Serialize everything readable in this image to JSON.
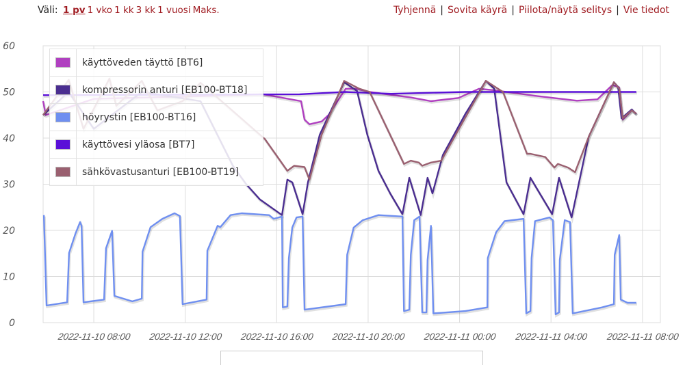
{
  "toolbar": {
    "range_label": "Väli:",
    "ranges": [
      "1 pv",
      "1 vko",
      "1 kk",
      "3 kk",
      "1 vuosi",
      "Maks."
    ],
    "active_range": "1 pv",
    "actions": [
      "Tyhjennä",
      "Sovita käyrä",
      "Piilota/näytä selitys",
      "Vie tiedot"
    ]
  },
  "chart_data": {
    "type": "line",
    "title": "",
    "xlabel": "",
    "ylabel": "",
    "ylim": [
      0,
      60
    ],
    "xlim": [
      "2022-11-10 05:47",
      "2022-11-11 08:47"
    ],
    "y_ticks": [
      "0",
      "10",
      "20",
      "30",
      "40",
      "50",
      "60"
    ],
    "x_ticks": [
      "2022-11-10 08:00",
      "2022-11-10 12:00",
      "2022-11-10 16:00",
      "2022-11-10 20:00",
      "2022-11-11 00:00",
      "2022-11-11 04:00",
      "2022-11-11 08:00"
    ],
    "grid": true,
    "legend_position": "top-left",
    "series": [
      {
        "name": "käyttöveden täyttö [BT6]",
        "color": "#b040c0",
        "points": [
          [
            "2022-11-10 05:47",
            48
          ],
          [
            "2022-11-10 05:54",
            45
          ],
          [
            "2022-11-10 08:00",
            48.5
          ],
          [
            "2022-11-10 12:00",
            49
          ],
          [
            "2022-11-10 15:25",
            49.5
          ],
          [
            "2022-11-10 17:04",
            48
          ],
          [
            "2022-11-10 17:13",
            44
          ],
          [
            "2022-11-10 17:26",
            43
          ],
          [
            "2022-11-10 17:58",
            43.6
          ],
          [
            "2022-11-10 18:16",
            45
          ],
          [
            "2022-11-10 19:01",
            50.7
          ],
          [
            "2022-11-10 19:28",
            50.7
          ],
          [
            "2022-11-10 20:04",
            50
          ],
          [
            "2022-11-10 21:52",
            48.8
          ],
          [
            "2022-11-10 22:45",
            48
          ],
          [
            "2022-11-10 23:57",
            48.7
          ],
          [
            "2022-11-11 00:51",
            50.7
          ],
          [
            "2022-11-11 01:27",
            50.4
          ],
          [
            "2022-11-11 03:15",
            49.2
          ],
          [
            "2022-11-11 05:08",
            48.1
          ],
          [
            "2022-11-11 06:02",
            48.4
          ],
          [
            "2022-11-11 06:41",
            51.5
          ],
          [
            "2022-11-11 06:59",
            51
          ],
          [
            "2022-11-11 07:08",
            44
          ],
          [
            "2022-11-11 07:32",
            46
          ],
          [
            "2022-11-11 07:44",
            45.3
          ]
        ]
      },
      {
        "name": "kompressorin anturi [EB100-BT18]",
        "color": "#4a2d90",
        "points": [
          [
            "2022-11-10 05:47",
            45
          ],
          [
            "2022-11-10 06:54",
            50
          ],
          [
            "2022-11-10 08:00",
            42
          ],
          [
            "2022-11-10 10:06",
            50
          ],
          [
            "2022-11-10 12:40",
            48
          ],
          [
            "2022-11-10 14:05",
            34
          ],
          [
            "2022-11-10 14:40",
            30
          ],
          [
            "2022-11-10 15:16",
            26.7
          ],
          [
            "2022-11-10 16:14",
            23.3
          ],
          [
            "2022-11-10 16:28",
            31
          ],
          [
            "2022-11-10 16:41",
            30.4
          ],
          [
            "2022-11-10 17:08",
            23.5
          ],
          [
            "2022-11-10 17:22",
            30.4
          ],
          [
            "2022-11-10 17:53",
            40.7
          ],
          [
            "2022-11-10 18:57",
            52.1
          ],
          [
            "2022-11-10 19:31",
            50.2
          ],
          [
            "2022-11-10 19:58",
            40.7
          ],
          [
            "2022-11-10 20:27",
            32.9
          ],
          [
            "2022-11-10 20:58",
            28
          ],
          [
            "2022-11-10 21:30",
            23.5
          ],
          [
            "2022-11-10 21:48",
            31.4
          ],
          [
            "2022-11-10 22:18",
            23.3
          ],
          [
            "2022-11-10 22:36",
            31.4
          ],
          [
            "2022-11-10 22:49",
            28
          ],
          [
            "2022-11-10 23:16",
            36.3
          ],
          [
            "2022-11-11 00:15",
            45.2
          ],
          [
            "2022-11-11 01:09",
            52.4
          ],
          [
            "2022-11-11 01:31",
            50.7
          ],
          [
            "2022-11-11 02:03",
            30.4
          ],
          [
            "2022-11-11 02:48",
            23.5
          ],
          [
            "2022-11-11 03:06",
            31.4
          ],
          [
            "2022-11-11 04:03",
            23.5
          ],
          [
            "2022-11-11 04:21",
            31.4
          ],
          [
            "2022-11-11 04:54",
            22.8
          ],
          [
            "2022-11-11 05:39",
            40.3
          ],
          [
            "2022-11-11 06:45",
            52.1
          ],
          [
            "2022-11-11 06:56",
            51.1
          ],
          [
            "2022-11-11 07:05",
            44.3
          ],
          [
            "2022-11-11 07:32",
            46.2
          ],
          [
            "2022-11-11 07:44",
            45.2
          ]
        ]
      },
      {
        "name": "höyrystin [EB100-BT16]",
        "color": "#6f8ff0",
        "points": [
          [
            "2022-11-10 05:49",
            23.3
          ],
          [
            "2022-11-10 05:56",
            3.7
          ],
          [
            "2022-11-10 06:50",
            4.4
          ],
          [
            "2022-11-10 06:55",
            15.1
          ],
          [
            "2022-11-10 07:12",
            19.3
          ],
          [
            "2022-11-10 07:24",
            21.8
          ],
          [
            "2022-11-10 07:28",
            21
          ],
          [
            "2022-11-10 07:33",
            4.4
          ],
          [
            "2022-11-10 08:27",
            5
          ],
          [
            "2022-11-10 08:32",
            16.1
          ],
          [
            "2022-11-10 08:48",
            19.9
          ],
          [
            "2022-11-10 08:54",
            5.8
          ],
          [
            "2022-11-10 09:41",
            4.6
          ],
          [
            "2022-11-10 10:06",
            5.2
          ],
          [
            "2022-11-10 10:08",
            15.4
          ],
          [
            "2022-11-10 10:29",
            20.7
          ],
          [
            "2022-11-10 11:00",
            22.5
          ],
          [
            "2022-11-10 11:32",
            23.7
          ],
          [
            "2022-11-10 11:46",
            23.1
          ],
          [
            "2022-11-10 11:53",
            4
          ],
          [
            "2022-11-10 12:56",
            5
          ],
          [
            "2022-11-10 12:58",
            15.6
          ],
          [
            "2022-11-10 13:25",
            21
          ],
          [
            "2022-11-10 13:32",
            20.7
          ],
          [
            "2022-11-10 13:59",
            23.3
          ],
          [
            "2022-11-10 14:28",
            23.7
          ],
          [
            "2022-11-10 15:40",
            23.3
          ],
          [
            "2022-11-10 15:52",
            22.5
          ],
          [
            "2022-11-10 16:14",
            23
          ],
          [
            "2022-11-10 16:16",
            3.3
          ],
          [
            "2022-11-10 16:28",
            3.5
          ],
          [
            "2022-11-10 16:32",
            14
          ],
          [
            "2022-11-10 16:41",
            20.6
          ],
          [
            "2022-11-10 16:52",
            22.8
          ],
          [
            "2022-11-10 17:08",
            23
          ],
          [
            "2022-11-10 17:13",
            2.8
          ],
          [
            "2022-11-10 19:01",
            4
          ],
          [
            "2022-11-10 19:05",
            14.7
          ],
          [
            "2022-11-10 19:22",
            20.6
          ],
          [
            "2022-11-10 19:46",
            22.2
          ],
          [
            "2022-11-10 20:27",
            23.3
          ],
          [
            "2022-11-10 21:30",
            23
          ],
          [
            "2022-11-10 21:34",
            2.5
          ],
          [
            "2022-11-10 21:48",
            2.8
          ],
          [
            "2022-11-10 21:52",
            14.7
          ],
          [
            "2022-11-10 22:01",
            22.2
          ],
          [
            "2022-11-10 22:15",
            23
          ],
          [
            "2022-11-10 22:22",
            2.2
          ],
          [
            "2022-11-10 22:33",
            2.2
          ],
          [
            "2022-11-10 22:36",
            13.6
          ],
          [
            "2022-11-10 22:45",
            21
          ],
          [
            "2022-11-10 22:51",
            2
          ],
          [
            "2022-11-11 00:15",
            2.5
          ],
          [
            "2022-11-11 01:13",
            3.3
          ],
          [
            "2022-11-11 01:14",
            14
          ],
          [
            "2022-11-11 01:36",
            19.6
          ],
          [
            "2022-11-11 01:58",
            22
          ],
          [
            "2022-11-11 02:48",
            22.5
          ],
          [
            "2022-11-11 02:55",
            2
          ],
          [
            "2022-11-11 03:06",
            2.5
          ],
          [
            "2022-11-11 03:09",
            14
          ],
          [
            "2022-11-11 03:18",
            22
          ],
          [
            "2022-11-11 03:56",
            22.8
          ],
          [
            "2022-11-11 04:05",
            22.2
          ],
          [
            "2022-11-11 04:12",
            1.8
          ],
          [
            "2022-11-11 04:21",
            2.2
          ],
          [
            "2022-11-11 04:23",
            13.6
          ],
          [
            "2022-11-11 04:36",
            22.2
          ],
          [
            "2022-11-11 04:50",
            21.8
          ],
          [
            "2022-11-11 04:57",
            2
          ],
          [
            "2022-11-11 06:14",
            3.3
          ],
          [
            "2022-11-11 06:45",
            4
          ],
          [
            "2022-11-11 06:47",
            14.7
          ],
          [
            "2022-11-11 06:59",
            19
          ],
          [
            "2022-11-11 07:03",
            5
          ],
          [
            "2022-11-11 07:21",
            4.3
          ],
          [
            "2022-11-11 07:44",
            4.3
          ]
        ]
      },
      {
        "name": "käyttövesi yläosa [BT7]",
        "color": "#5a10d8",
        "points": [
          [
            "2022-11-10 05:47",
            49.3
          ],
          [
            "2022-11-10 17:00",
            49.5
          ],
          [
            "2022-11-10 19:00",
            50
          ],
          [
            "2022-11-10 21:00",
            49.6
          ],
          [
            "2022-11-11 00:15",
            50
          ],
          [
            "2022-11-11 07:44",
            50
          ]
        ]
      },
      {
        "name": "sähkövastusanturi [EB100-BT19]",
        "color": "#9a6070",
        "points": [
          [
            "2022-11-10 05:47",
            45
          ],
          [
            "2022-11-10 06:54",
            52.6
          ],
          [
            "2022-11-10 07:33",
            42
          ],
          [
            "2022-11-10 08:41",
            52.9
          ],
          [
            "2022-11-10 08:59",
            47
          ],
          [
            "2022-11-10 10:06",
            52.4
          ],
          [
            "2022-11-10 10:47",
            46
          ],
          [
            "2022-11-10 11:53",
            48
          ],
          [
            "2022-11-10 12:40",
            52
          ],
          [
            "2022-11-10 15:29",
            39.8
          ],
          [
            "2022-11-10 16:28",
            32.9
          ],
          [
            "2022-11-10 16:46",
            34
          ],
          [
            "2022-11-10 17:13",
            33.7
          ],
          [
            "2022-11-10 17:26",
            31
          ],
          [
            "2022-11-10 17:58",
            40.7
          ],
          [
            "2022-11-10 18:57",
            52.4
          ],
          [
            "2022-11-10 19:37",
            50.7
          ],
          [
            "2022-11-10 20:04",
            50
          ],
          [
            "2022-11-10 21:34",
            34.4
          ],
          [
            "2022-11-10 21:52",
            35.1
          ],
          [
            "2022-11-10 22:13",
            34.7
          ],
          [
            "2022-11-10 22:22",
            34
          ],
          [
            "2022-11-10 22:45",
            34.7
          ],
          [
            "2022-11-10 23:12",
            35.1
          ],
          [
            "2022-11-10 23:57",
            41.8
          ],
          [
            "2022-11-11 01:09",
            52.4
          ],
          [
            "2022-11-11 01:54",
            50
          ],
          [
            "2022-11-11 02:57",
            36.6
          ],
          [
            "2022-11-11 03:06",
            36.6
          ],
          [
            "2022-11-11 03:45",
            35.9
          ],
          [
            "2022-11-11 04:09",
            33.6
          ],
          [
            "2022-11-11 04:18",
            34.4
          ],
          [
            "2022-11-11 04:45",
            33.6
          ],
          [
            "2022-11-11 05:03",
            32.6
          ],
          [
            "2022-11-11 05:39",
            40.3
          ],
          [
            "2022-11-11 06:45",
            52.1
          ],
          [
            "2022-11-11 06:59",
            50.7
          ],
          [
            "2022-11-11 07:08",
            44.3
          ],
          [
            "2022-11-11 07:32",
            46
          ],
          [
            "2022-11-11 07:44",
            45.3
          ]
        ]
      }
    ]
  }
}
